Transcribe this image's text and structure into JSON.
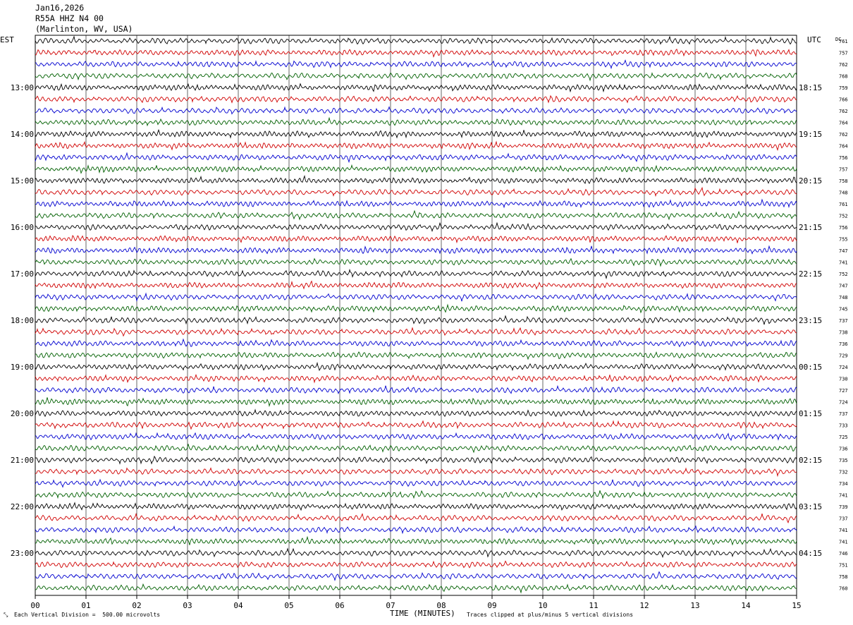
{
  "header": {
    "date": "Jan16,2026",
    "station": "R55A HHZ N4 00",
    "location": "(Marlinton, WV, USA)"
  },
  "axes": {
    "left_tz": "EST",
    "right_tz": "UTC",
    "dc_label": "DC",
    "xlabel": "TIME (MINUTES)"
  },
  "footer": {
    "scale_note": "Each Vertical Division =  500.00 microvolts",
    "clip_note": "Traces clipped at plus/minus 5 vertical divisions"
  },
  "colors": {
    "trace_cycle": [
      "#000000",
      "#d00000",
      "#0000d0",
      "#006000"
    ],
    "grid": "#000000",
    "background": "#ffffff"
  },
  "chart_data": {
    "type": "line",
    "title": "Jan16,2026 R55A HHZ N4 00 (Marlinton, WV, USA)",
    "xlabel": "TIME (MINUTES)",
    "ylabel": "",
    "xlim": [
      0,
      15
    ],
    "x_ticks": [
      "00",
      "01",
      "02",
      "03",
      "04",
      "05",
      "06",
      "07",
      "08",
      "09",
      "10",
      "11",
      "12",
      "13",
      "14",
      "15"
    ],
    "traces_per_hour": 4,
    "minutes_per_trace": 15,
    "left_hour_labels": [
      "",
      "13:00",
      "14:00",
      "15:00",
      "16:00",
      "17:00",
      "18:00",
      "19:00",
      "20:00",
      "21:00",
      "22:00",
      "23:00"
    ],
    "right_hour_labels": [
      "",
      "18:15",
      "19:15",
      "20:15",
      "21:15",
      "22:15",
      "23:15",
      "00:15",
      "01:15",
      "02:15",
      "03:15",
      "04:15"
    ],
    "dc_offsets": [
      761,
      757,
      762,
      768,
      759,
      766,
      762,
      764,
      762,
      764,
      756,
      757,
      758,
      748,
      761,
      752,
      756,
      755,
      747,
      741,
      752,
      747,
      748,
      745,
      737,
      738,
      736,
      729,
      724,
      730,
      727,
      724,
      737,
      733,
      725,
      736,
      735,
      732,
      734,
      741,
      739,
      737,
      741,
      741,
      746,
      751,
      758,
      760
    ],
    "grid": true,
    "legend": "none"
  }
}
